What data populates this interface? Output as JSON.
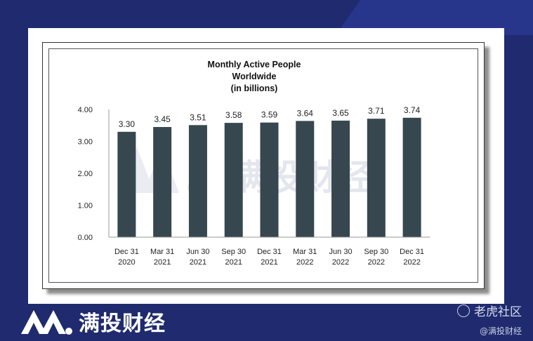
{
  "chart_data": {
    "type": "bar",
    "title_lines": [
      "Monthly Active People",
      "Worldwide",
      "(in billions)"
    ],
    "categories": [
      [
        "Dec 31",
        "2020"
      ],
      [
        "Mar 31",
        "2021"
      ],
      [
        "Jun 30",
        "2021"
      ],
      [
        "Sep 30",
        "2021"
      ],
      [
        "Dec 31",
        "2021"
      ],
      [
        "Mar 31",
        "2022"
      ],
      [
        "Jun 30",
        "2022"
      ],
      [
        "Sep 30",
        "2022"
      ],
      [
        "Dec 31",
        "2022"
      ]
    ],
    "values": [
      3.3,
      3.45,
      3.51,
      3.58,
      3.59,
      3.64,
      3.65,
      3.71,
      3.74
    ],
    "value_labels": [
      "3.30",
      "3.45",
      "3.51",
      "3.58",
      "3.59",
      "3.64",
      "3.65",
      "3.71",
      "3.74"
    ],
    "yticks": [
      "0.00",
      "1.00",
      "2.00",
      "3.00",
      "4.00"
    ],
    "ylim": [
      0,
      4
    ],
    "bar_color": "#37474f",
    "grid": false,
    "legend": "none"
  },
  "watermark": {
    "text": "满投财经"
  },
  "footer": {
    "brand": "满投财经",
    "forum_name": "老虎社区",
    "handle": "@满投财经"
  },
  "colors": {
    "background": "#1f2b6e",
    "bar": "#37474f"
  }
}
